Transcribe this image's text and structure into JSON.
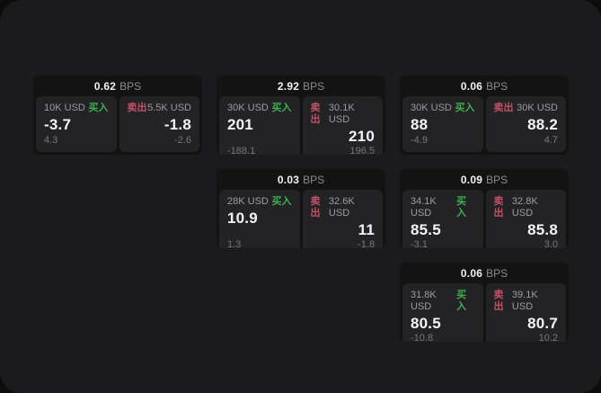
{
  "labels": {
    "bps_unit": "BPS",
    "buy": "买入",
    "sell": "卖出"
  },
  "colors": {
    "buy": "#3dae53",
    "sell": "#c45064",
    "panel_bg": "#1b1b1d",
    "card_bg": "#131314",
    "pane_bg": "#232326",
    "outer_bg": "#0d0d0d"
  },
  "cards": [
    {
      "col": 1,
      "row": 1,
      "bps": "0.62",
      "buy": {
        "size": "10K USD",
        "price": "-3.7",
        "delta": "4.3"
      },
      "sell": {
        "size": "5.5K USD",
        "price": "-1.8",
        "delta": "-2.6"
      }
    },
    {
      "col": 2,
      "row": 1,
      "bps": "2.92",
      "buy": {
        "size": "30K USD",
        "price": "201",
        "delta": "-188.1"
      },
      "sell": {
        "size": "30.1K USD",
        "price": "210",
        "delta": "196.5"
      }
    },
    {
      "col": 3,
      "row": 1,
      "bps": "0.06",
      "buy": {
        "size": "30K USD",
        "price": "88",
        "delta": "-4.9"
      },
      "sell": {
        "size": "30K USD",
        "price": "88.2",
        "delta": "4.7"
      }
    },
    {
      "col": 2,
      "row": 2,
      "bps": "0.03",
      "buy": {
        "size": "28K USD",
        "price": "10.9",
        "delta": "1.3"
      },
      "sell": {
        "size": "32.6K USD",
        "price": "11",
        "delta": "-1.8"
      }
    },
    {
      "col": 3,
      "row": 2,
      "bps": "0.09",
      "buy": {
        "size": "34.1K USD",
        "price": "85.5",
        "delta": "-3.1"
      },
      "sell": {
        "size": "32.8K USD",
        "price": "85.8",
        "delta": "3.0"
      }
    },
    {
      "col": 3,
      "row": 3,
      "bps": "0.06",
      "buy": {
        "size": "31.8K USD",
        "price": "80.5",
        "delta": "-10.8"
      },
      "sell": {
        "size": "39.1K USD",
        "price": "80.7",
        "delta": "10.2"
      }
    }
  ]
}
